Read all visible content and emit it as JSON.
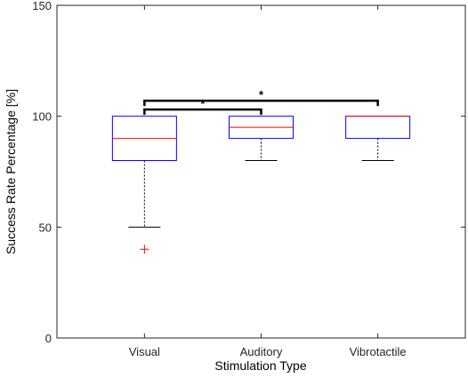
{
  "chart_data": {
    "type": "box",
    "categories": [
      "Visual",
      "Auditory",
      "Vibrotactile"
    ],
    "xlabel": "Stimulation Type",
    "ylabel": "Success Rate Percentage [%]",
    "ylim": [
      0,
      150
    ],
    "yticks": [
      0,
      50,
      100,
      150
    ],
    "grid": false,
    "boxes": [
      {
        "category": "Visual",
        "whisker_low": 50,
        "q1": 80,
        "median": 90,
        "q3": 100,
        "whisker_high": 100,
        "outliers": [
          40
        ]
      },
      {
        "category": "Auditory",
        "whisker_low": 80,
        "q1": 90,
        "median": 95,
        "q3": 100,
        "whisker_high": 100,
        "outliers": []
      },
      {
        "category": "Vibrotactile",
        "whisker_low": 80,
        "q1": 90,
        "median": 100,
        "q3": 100,
        "whisker_high": 100,
        "outliers": []
      }
    ],
    "significance": [
      {
        "from": "Visual",
        "to": "Auditory",
        "y": 103,
        "label": "*"
      },
      {
        "from": "Visual",
        "to": "Vibrotactile",
        "y": 107,
        "label": "*"
      }
    ],
    "colors": {
      "box": "#0000ff",
      "median": "#ff0000",
      "outlier": "#ff0000",
      "whisker": "#000000",
      "axes": "#262626"
    }
  }
}
